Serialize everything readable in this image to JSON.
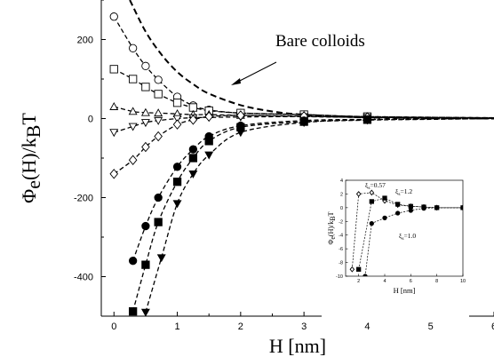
{
  "chart_data": [
    {
      "type": "scatter",
      "xlabel": "H [nm]",
      "ylabel": "Φe(H)/kBT",
      "xlim": [
        -0.2,
        6
      ],
      "ylim": [
        -500,
        300
      ],
      "x_ticks": [
        0,
        1,
        2,
        3,
        4,
        5,
        6
      ],
      "y_ticks": [
        -400,
        -200,
        0,
        200
      ],
      "annotation": "Bare colloids",
      "series": [
        {
          "marker": "dashed-line",
          "x": [
            0.25,
            0.5,
            0.75,
            1,
            1.25,
            1.5,
            2,
            2.5,
            3,
            4,
            5,
            6
          ],
          "y": [
            300,
            220,
            162,
            118,
            87,
            63,
            34,
            18,
            10,
            3,
            1,
            0
          ]
        },
        {
          "marker": "open-circle",
          "x": [
            0,
            0.3,
            0.5,
            0.7,
            1,
            1.25,
            1.5,
            2,
            3,
            4,
            6
          ],
          "y": [
            258,
            178,
            133,
            98,
            55,
            33,
            22,
            14,
            10,
            5,
            2
          ]
        },
        {
          "marker": "open-square",
          "x": [
            0,
            0.3,
            0.5,
            0.7,
            1,
            1.25,
            1.5,
            2,
            3,
            4,
            6
          ],
          "y": [
            125,
            100,
            80,
            62,
            40,
            28,
            20,
            14,
            10,
            5,
            2
          ]
        },
        {
          "marker": "open-triangle-up",
          "x": [
            0,
            0.3,
            0.5,
            0.7,
            1,
            1.25,
            1.5,
            2,
            3,
            4,
            6
          ],
          "y": [
            30,
            18,
            15,
            14,
            12,
            10,
            10,
            8,
            5,
            3,
            1
          ]
        },
        {
          "marker": "open-triangle-down",
          "x": [
            0,
            0.3,
            0.5,
            0.7,
            1,
            1.25,
            1.5,
            2,
            3,
            4,
            6
          ],
          "y": [
            -35,
            -20,
            -10,
            -5,
            0,
            2,
            3,
            4,
            5,
            3,
            1
          ]
        },
        {
          "marker": "open-diamond",
          "x": [
            0,
            0.3,
            0.5,
            0.7,
            1,
            1.25,
            1.5,
            2,
            3,
            4,
            6
          ],
          "y": [
            -140,
            -105,
            -72,
            -45,
            -15,
            -3,
            5,
            8,
            6,
            3,
            1
          ]
        },
        {
          "marker": "filled-circle",
          "x": [
            0.3,
            0.5,
            0.7,
            1,
            1.25,
            1.5,
            2,
            3,
            4,
            5,
            6
          ],
          "y": [
            -360,
            -272,
            -200,
            -122,
            -78,
            -45,
            -18,
            -5,
            -2,
            -1,
            0
          ]
        },
        {
          "marker": "filled-square",
          "x": [
            0.3,
            0.5,
            0.7,
            1,
            1.25,
            1.5,
            2,
            3,
            4,
            5,
            6
          ],
          "y": [
            -488,
            -370,
            -262,
            -160,
            -100,
            -57,
            -22,
            -8,
            -3,
            -1,
            0
          ]
        },
        {
          "marker": "filled-triangle-down",
          "x": [
            0.5,
            0.75,
            1,
            1.25,
            1.5,
            2,
            3,
            4,
            5,
            6
          ],
          "y": [
            -490,
            -352,
            -215,
            -140,
            -92,
            -35,
            -10,
            -4,
            -2,
            0
          ]
        }
      ]
    },
    {
      "type": "scatter",
      "xlabel": "H [nm]",
      "ylabel": "Φe(H)/kBT",
      "xlim": [
        1,
        10
      ],
      "ylim": [
        -10,
        4
      ],
      "x_ticks": [
        2,
        4,
        6,
        8,
        10
      ],
      "y_ticks": [
        -10,
        -8,
        -6,
        -4,
        -2,
        0,
        2,
        4
      ],
      "series": [
        {
          "name": "ξs=0.57",
          "marker": "open-diamond",
          "x": [
            1.5,
            2,
            3,
            4,
            5,
            6,
            7,
            8,
            10
          ],
          "y": [
            -9,
            2,
            2.2,
            1,
            0.4,
            0.2,
            0.1,
            0,
            0
          ]
        },
        {
          "name": "ξs=1.2",
          "marker": "filled-square",
          "x": [
            2,
            3,
            4,
            5,
            6,
            7,
            8,
            10
          ],
          "y": [
            -9,
            0.9,
            1.4,
            0.5,
            0.2,
            0.1,
            0,
            0
          ]
        },
        {
          "name": "ξs=1.0",
          "marker": "filled-circle",
          "x": [
            2.5,
            3,
            4,
            5,
            6,
            7,
            8,
            10
          ],
          "y": [
            -10,
            -2.3,
            -1.5,
            -0.8,
            -0.4,
            -0.1,
            0,
            0
          ]
        }
      ]
    }
  ]
}
